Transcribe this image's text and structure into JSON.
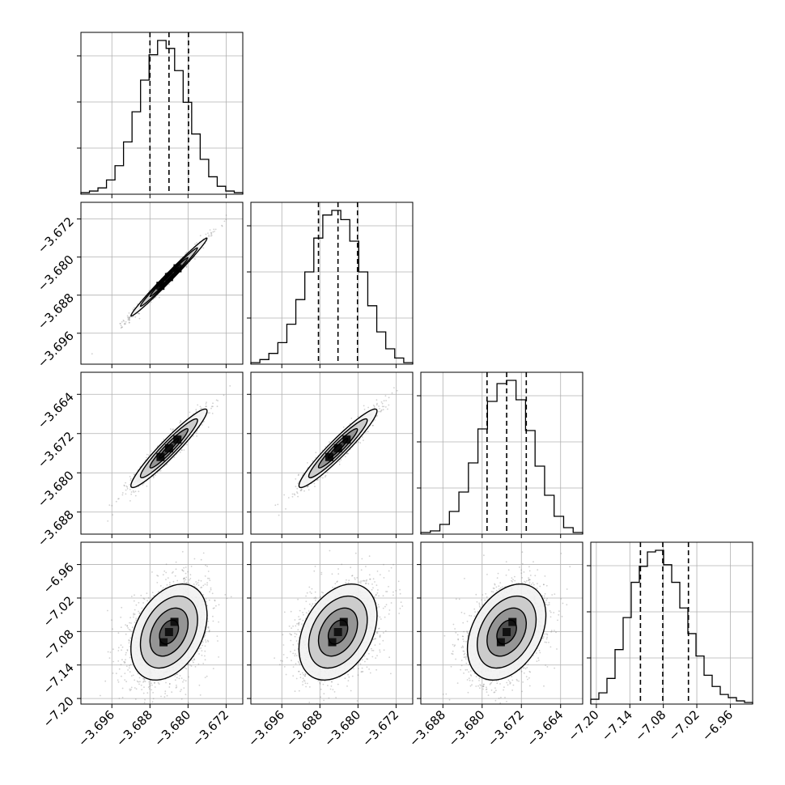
{
  "chart_data": {
    "type": "corner",
    "title": "",
    "parameters": [
      {
        "index": 0,
        "label": "",
        "range": [
          -3.7025,
          -3.6685
        ],
        "ticks": [
          -3.696,
          -3.688,
          -3.68,
          -3.672
        ],
        "tick_labels": [
          "−3.696",
          "−3.688",
          "−3.680",
          "−3.672"
        ],
        "quantiles": [
          -3.688,
          -3.684,
          -3.6799
        ]
      },
      {
        "index": 1,
        "label": "",
        "range": [
          -3.7025,
          -3.6685
        ],
        "ticks": [
          -3.696,
          -3.688,
          -3.68,
          -3.672
        ],
        "tick_labels": [
          "−3.696",
          "−3.688",
          "−3.680",
          "−3.672"
        ],
        "quantiles": [
          -3.6883,
          -3.6842,
          -3.6801
        ]
      },
      {
        "index": 2,
        "label": "",
        "range": [
          -3.6925,
          -3.6595
        ],
        "ticks": [
          -3.688,
          -3.68,
          -3.672,
          -3.664
        ],
        "tick_labels": [
          "−3.688",
          "−3.680",
          "−3.672",
          "−3.664"
        ],
        "quantiles": [
          -3.679,
          -3.675,
          -3.671
        ]
      },
      {
        "index": 3,
        "label": "",
        "range": [
          -7.21,
          -6.92
        ],
        "ticks": [
          -7.2,
          -7.14,
          -7.08,
          -7.02,
          -6.96
        ],
        "tick_labels": [
          "−7.20",
          "−7.14",
          "−7.08",
          "−7.02",
          "−6.96"
        ],
        "quantiles": [
          -7.121,
          -7.081,
          -7.035
        ]
      }
    ],
    "histograms": [
      {
        "param": 0,
        "counts": [
          1,
          2,
          4,
          9,
          18,
          33,
          52,
          72,
          88,
          97,
          92,
          78,
          58,
          38,
          22,
          11,
          5,
          2,
          1
        ]
      },
      {
        "param": 1,
        "counts": [
          1,
          3,
          7,
          14,
          26,
          42,
          60,
          82,
          97,
          100,
          94,
          80,
          60,
          38,
          21,
          10,
          4,
          1
        ]
      },
      {
        "param": 2,
        "counts": [
          1,
          2,
          6,
          14,
          26,
          44,
          65,
          82,
          93,
          95,
          83,
          64,
          42,
          24,
          11,
          4,
          1
        ]
      },
      {
        "param": 3,
        "counts": [
          3,
          7,
          16,
          34,
          54,
          76,
          86,
          95,
          96,
          87,
          76,
          60,
          44,
          30,
          18,
          11,
          6,
          4,
          2,
          1
        ]
      }
    ],
    "pairs": [
      {
        "x_param": 0,
        "y_param": 1,
        "rho": 0.99,
        "center": [
          -3.684,
          -3.6842
        ],
        "sigma": [
          0.004,
          0.0041
        ]
      },
      {
        "x_param": 0,
        "y_param": 2,
        "rho": 0.95,
        "center": [
          -3.684,
          -3.675
        ],
        "sigma": [
          0.004,
          0.004
        ]
      },
      {
        "x_param": 1,
        "y_param": 2,
        "rho": 0.95,
        "center": [
          -3.6842,
          -3.675
        ],
        "sigma": [
          0.0041,
          0.004
        ]
      },
      {
        "x_param": 0,
        "y_param": 3,
        "rho": 0.35,
        "center": [
          -3.684,
          -7.081
        ],
        "sigma": [
          0.004,
          0.043
        ]
      },
      {
        "x_param": 1,
        "y_param": 3,
        "rho": 0.35,
        "center": [
          -3.6842,
          -7.081
        ],
        "sigma": [
          0.0041,
          0.043
        ]
      },
      {
        "x_param": 2,
        "y_param": 3,
        "rho": 0.35,
        "center": [
          -3.675,
          -7.081
        ],
        "sigma": [
          0.004,
          0.043
        ]
      }
    ],
    "contour_levels": [
      0.5,
      1.0,
      1.5,
      2.0
    ],
    "quantile_lines": "dashed",
    "grid": true
  }
}
